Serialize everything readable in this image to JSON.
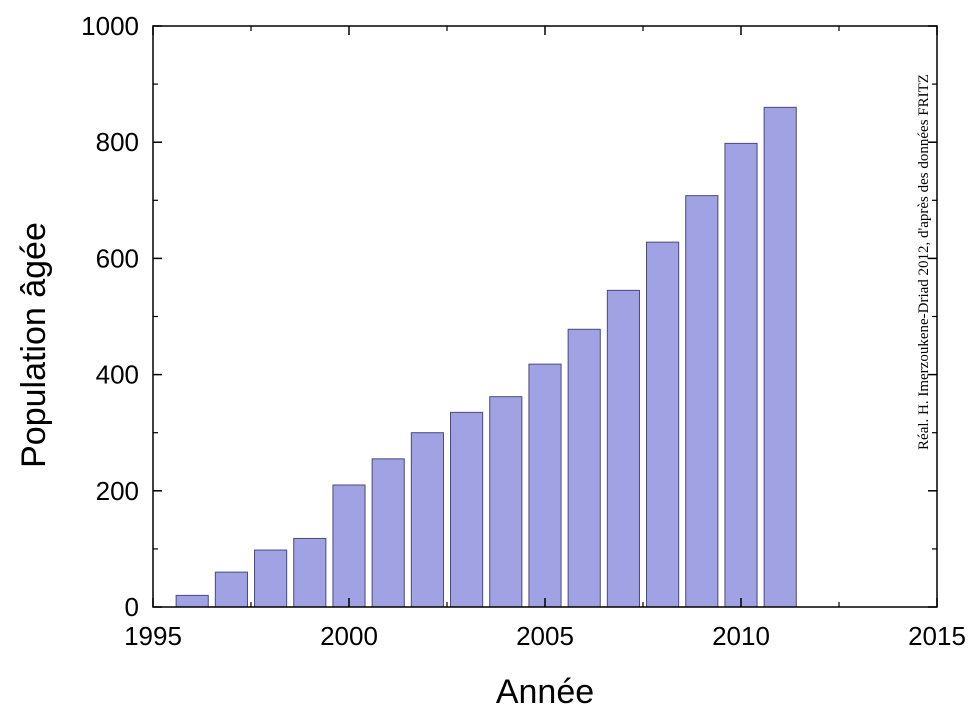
{
  "chart_data": {
    "type": "bar",
    "title": "",
    "xlabel": "Année",
    "ylabel": "Population âgée",
    "annotation": "Réal. H. Imerzoukene-Driad 2012, d'après des données FRITZ",
    "x": [
      1996,
      1997,
      1998,
      1999,
      2000,
      2001,
      2002,
      2003,
      2004,
      2005,
      2006,
      2007,
      2008,
      2009,
      2010,
      2011
    ],
    "values": [
      20,
      60,
      98,
      118,
      210,
      255,
      300,
      335,
      362,
      418,
      478,
      545,
      628,
      708,
      798,
      860
    ],
    "xlim": [
      1995,
      2015
    ],
    "ylim": [
      0,
      1000
    ],
    "x_ticks": [
      1995,
      2000,
      2005,
      2010,
      2015
    ],
    "y_ticks": [
      0,
      200,
      400,
      600,
      800,
      1000
    ],
    "bar_color": "#a0a2e3",
    "bar_edge_color": "#4a4a7a",
    "grid": false,
    "legend": "none"
  }
}
